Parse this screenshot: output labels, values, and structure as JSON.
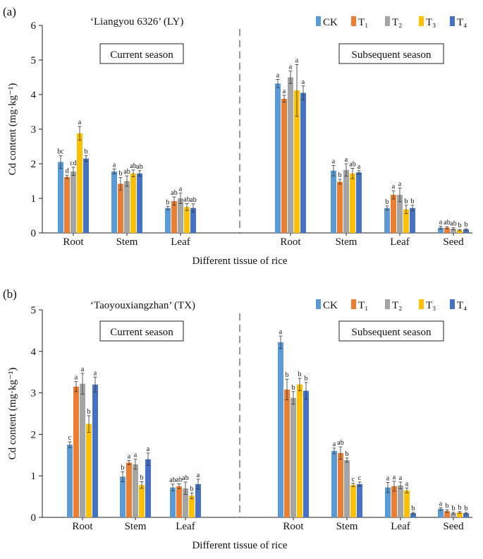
{
  "colors": {
    "CK": "#5B9BD5",
    "T1": "#ED7D31",
    "T2": "#A5A5A5",
    "T3": "#FFC000",
    "T4": "#4472C4"
  },
  "legend_labels": [
    "CK",
    "T₁",
    "T₂",
    "T₃",
    "T₄"
  ],
  "chart_data": [
    {
      "type": "bar",
      "panel_label": "(a)",
      "title": "‘Liangyou 6326’ (LY)",
      "ylabel": "Cd content (mg·kg⁻¹)",
      "xlabel": "Different tissue of rice",
      "ylim": [
        0,
        6
      ],
      "yticks": [
        "0",
        "1",
        "2",
        "3",
        "4",
        "5",
        "6"
      ],
      "season_labels": [
        "Current season",
        "Subsequent season"
      ],
      "groups": [
        {
          "name": "Root",
          "values": [
            2.05,
            1.62,
            1.78,
            2.88,
            2.15
          ],
          "errors": [
            0.18,
            0.05,
            0.12,
            0.2,
            0.08
          ],
          "letters": [
            "bc",
            "d",
            "cd",
            "a",
            "b"
          ]
        },
        {
          "name": "Stem",
          "values": [
            1.78,
            1.42,
            1.5,
            1.72,
            1.72
          ],
          "errors": [
            0.07,
            0.18,
            0.15,
            0.1,
            0.08
          ],
          "letters": [
            "a",
            "b",
            "ab",
            "ab",
            "ab"
          ]
        },
        {
          "name": "Leaf",
          "values": [
            0.72,
            0.92,
            1.0,
            0.75,
            0.72
          ],
          "errors": [
            0.05,
            0.12,
            0.15,
            0.1,
            0.12
          ],
          "letters": [
            "b",
            "ab",
            "a",
            "ab",
            "ab"
          ]
        },
        {
          "name": "Root",
          "values": [
            4.32,
            3.88,
            4.5,
            4.12,
            4.05
          ],
          "errors": [
            0.12,
            0.1,
            0.18,
            0.75,
            0.2
          ],
          "letters": [
            "a",
            "a",
            "a",
            "a",
            "a"
          ]
        },
        {
          "name": "Stem",
          "values": [
            1.8,
            1.48,
            1.82,
            1.72,
            1.75
          ],
          "errors": [
            0.15,
            0.07,
            0.18,
            0.15,
            0.05
          ],
          "letters": [
            "a",
            "b",
            "a",
            "ab",
            "a"
          ]
        },
        {
          "name": "Leaf",
          "values": [
            0.72,
            1.1,
            1.1,
            0.68,
            0.72
          ],
          "errors": [
            0.06,
            0.12,
            0.2,
            0.12,
            0.08
          ],
          "letters": [
            "b",
            "a",
            "a",
            "b",
            "b"
          ]
        },
        {
          "name": "Seed",
          "values": [
            0.15,
            0.15,
            0.12,
            0.08,
            0.1
          ],
          "errors": [
            0.04,
            0.03,
            0.03,
            0.02,
            0.02
          ],
          "letters": [
            "a",
            "ab",
            "ab",
            "b",
            "b"
          ]
        }
      ]
    },
    {
      "type": "bar",
      "panel_label": "(b)",
      "title": "‘Taoyouxiangzhan’ (TX)",
      "ylabel": "Cd content (mg·kg⁻¹)",
      "xlabel": "Different tissue of rice",
      "ylim": [
        0,
        5
      ],
      "yticks": [
        "0",
        "1",
        "2",
        "3",
        "4",
        "5"
      ],
      "season_labels": [
        "Current season",
        "Subsequent season"
      ],
      "groups": [
        {
          "name": "Root",
          "values": [
            1.75,
            3.15,
            3.22,
            2.25,
            3.2
          ],
          "errors": [
            0.07,
            0.12,
            0.25,
            0.2,
            0.18
          ],
          "letters": [
            "c",
            "a",
            "a",
            "b",
            "a"
          ]
        },
        {
          "name": "Stem",
          "values": [
            0.98,
            1.32,
            1.28,
            0.78,
            1.4
          ],
          "errors": [
            0.12,
            0.05,
            0.12,
            0.08,
            0.15
          ],
          "letters": [
            "b",
            "a",
            "a",
            "b",
            "a"
          ]
        },
        {
          "name": "Leaf",
          "values": [
            0.72,
            0.75,
            0.7,
            0.52,
            0.8
          ],
          "errors": [
            0.08,
            0.06,
            0.15,
            0.07,
            0.12
          ],
          "letters": [
            "ab",
            "ab",
            "ab",
            "b",
            "a"
          ]
        },
        {
          "name": "Root",
          "values": [
            4.22,
            3.08,
            2.88,
            3.2,
            3.05
          ],
          "errors": [
            0.15,
            0.25,
            0.15,
            0.15,
            0.2
          ],
          "letters": [
            "a",
            "b",
            "b",
            "b",
            "b"
          ]
        },
        {
          "name": "Stem",
          "values": [
            1.6,
            1.55,
            1.38,
            0.78,
            0.8
          ],
          "errors": [
            0.07,
            0.15,
            0.05,
            0.04,
            0.05
          ],
          "letters": [
            "a",
            "ab",
            "b",
            "c",
            "c"
          ]
        },
        {
          "name": "Leaf",
          "values": [
            0.72,
            0.75,
            0.77,
            0.65,
            0.1
          ],
          "errors": [
            0.12,
            0.12,
            0.08,
            0.06,
            0.02
          ],
          "letters": [
            "a",
            "a",
            "a",
            "a",
            "b"
          ]
        },
        {
          "name": "Seed",
          "values": [
            0.2,
            0.15,
            0.1,
            0.12,
            0.1
          ],
          "errors": [
            0.03,
            0.03,
            0.02,
            0.02,
            0.02
          ],
          "letters": [
            "a",
            "b",
            "b",
            "b",
            "b"
          ]
        }
      ]
    }
  ]
}
